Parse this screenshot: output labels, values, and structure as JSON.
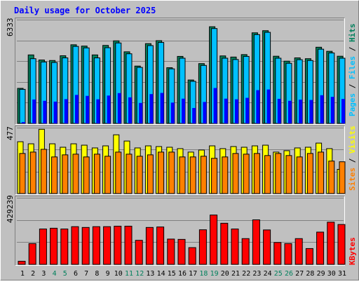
{
  "chart_data": [
    {
      "type": "bar",
      "title": "Daily usage for October 2025",
      "categories": [
        "1",
        "2",
        "3",
        "4",
        "5",
        "6",
        "7",
        "8",
        "9",
        "10",
        "11",
        "12",
        "13",
        "14",
        "15",
        "16",
        "17",
        "18",
        "19",
        "20",
        "21",
        "22",
        "23",
        "24",
        "25",
        "26",
        "27",
        "28",
        "29",
        "30",
        "31"
      ],
      "weekend_categories": [
        "4",
        "5",
        "11",
        "12",
        "18",
        "19",
        "25",
        "26"
      ],
      "ylim": [
        0,
        6333
      ],
      "max_label": "6333",
      "legend": [
        "Pages",
        "Files",
        "Hits"
      ],
      "series": [
        {
          "name": "Hits",
          "values": [
            2140,
            4180,
            3870,
            3840,
            4130,
            4800,
            4720,
            4180,
            4760,
            5040,
            4370,
            3500,
            4870,
            5050,
            3400,
            4090,
            2650,
            3650,
            5900,
            4120,
            4050,
            4200,
            5530,
            5660,
            4100,
            3800,
            4000,
            3950,
            4650,
            4400,
            4100
          ]
        },
        {
          "name": "Files",
          "values": [
            2080,
            3950,
            3750,
            3720,
            4000,
            4700,
            4610,
            4000,
            4620,
            4910,
            4250,
            3420,
            4750,
            4940,
            3330,
            3980,
            2570,
            3540,
            5790,
            3980,
            3900,
            4090,
            5420,
            5560,
            3980,
            3670,
            3890,
            3840,
            4530,
            4300,
            3980
          ]
        },
        {
          "name": "Pages",
          "values": [
            80,
            1460,
            1380,
            1330,
            1480,
            1740,
            1680,
            1470,
            1700,
            1850,
            1590,
            1250,
            1790,
            1860,
            1270,
            1510,
            940,
            1310,
            2160,
            1510,
            1470,
            1560,
            2030,
            2070,
            1500,
            1380,
            1450,
            1430,
            1720,
            1620,
            1490
          ]
        }
      ]
    },
    {
      "type": "bar",
      "ylim": [
        0,
        477
      ],
      "max_label": "477",
      "legend": [
        "Sites",
        "Visits"
      ],
      "series": [
        {
          "name": "Visits",
          "values": [
            375,
            360,
            465,
            360,
            335,
            360,
            350,
            330,
            345,
            425,
            380,
            330,
            345,
            340,
            335,
            325,
            300,
            315,
            345,
            325,
            340,
            335,
            345,
            350,
            300,
            310,
            330,
            335,
            365,
            325,
            175
          ]
        },
        {
          "name": "Sites",
          "values": [
            290,
            300,
            320,
            265,
            280,
            285,
            265,
            285,
            270,
            300,
            285,
            270,
            280,
            300,
            300,
            265,
            265,
            270,
            255,
            265,
            290,
            285,
            290,
            275,
            290,
            275,
            265,
            290,
            300,
            235,
            230
          ]
        }
      ]
    },
    {
      "type": "bar",
      "ylim": [
        0,
        429239
      ],
      "max_label": "429239",
      "legend": [
        "KBytes"
      ],
      "series": [
        {
          "name": "KBytes",
          "values": [
            20000,
            134000,
            228000,
            233000,
            228000,
            243000,
            238000,
            243000,
            243000,
            246000,
            246000,
            155000,
            238000,
            241000,
            163000,
            161000,
            108000,
            223000,
            318000,
            265000,
            228000,
            166000,
            287000,
            222000,
            141000,
            134000,
            166000,
            102000,
            208000,
            272000,
            257000
          ]
        }
      ]
    }
  ],
  "colors": {
    "background": "#c0c0c0",
    "title": "#0000ff",
    "hits": "#00805c",
    "files": "#00c0ff",
    "pages": "#0000ff",
    "visits": "#ffff00",
    "sites": "#ff8000",
    "kbytes": "#ff0000",
    "weekday_label": "#000000",
    "weekend_label": "#00805c",
    "separator": "#000000"
  }
}
